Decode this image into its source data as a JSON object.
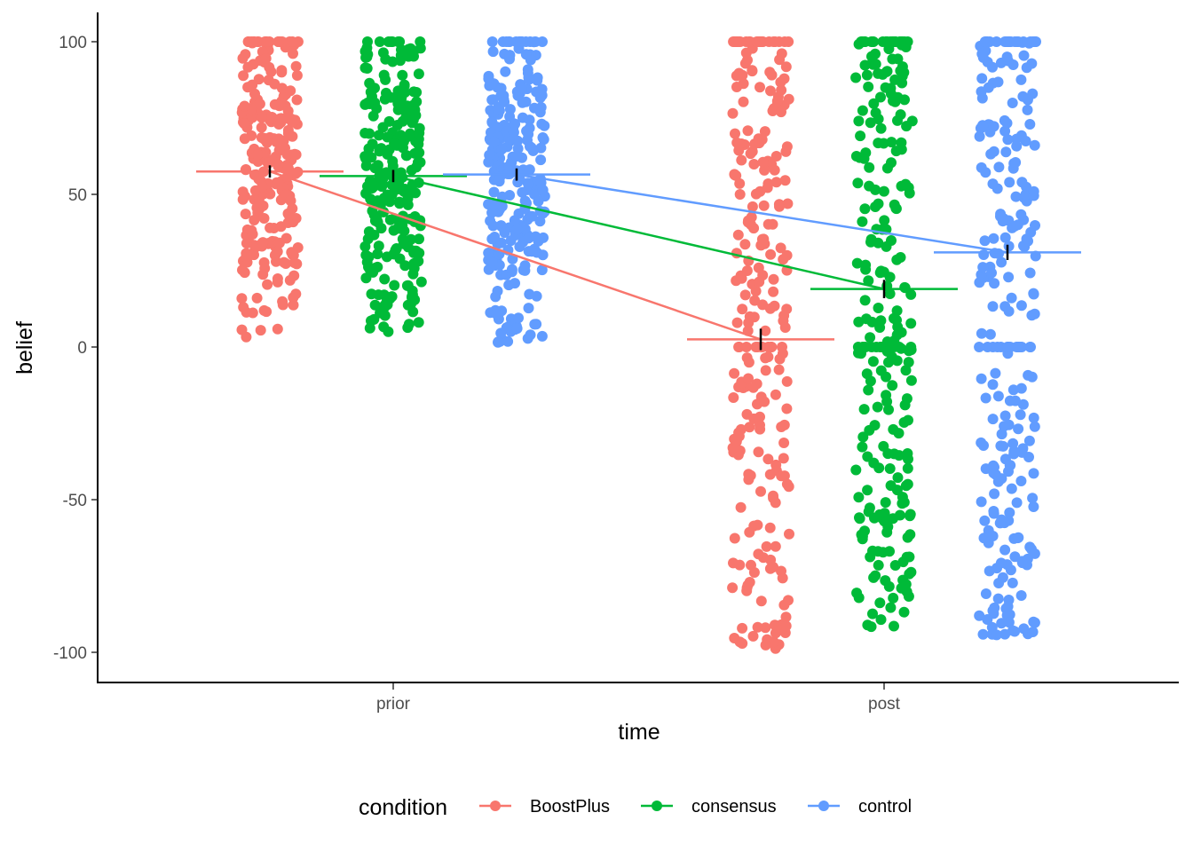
{
  "chart_data": {
    "type": "scatter",
    "title": "",
    "xlabel": "time",
    "ylabel": "belief",
    "categories": [
      "prior",
      "post"
    ],
    "ylim": [
      -110,
      110
    ],
    "yticks": [
      100,
      50,
      0,
      -50,
      -100
    ],
    "ytick_labels": [
      "100",
      "50",
      "0",
      "-50",
      "-100"
    ],
    "grid": false,
    "legend": {
      "title": "condition",
      "position": "bottom"
    },
    "series": [
      {
        "name": "BoostPlus",
        "color": "#F8766D",
        "means": [
          57.5,
          2.5
        ],
        "error": [
          2.0,
          3.5
        ],
        "jitter_ranges": {
          "prior": [
            3,
            100
          ],
          "post": [
            -100,
            100
          ]
        }
      },
      {
        "name": "consensus",
        "color": "#00BA38",
        "means": [
          56.0,
          19.0
        ],
        "error": [
          2.0,
          3.0
        ],
        "jitter_ranges": {
          "prior": [
            5,
            100
          ],
          "post": [
            -92,
            100
          ]
        }
      },
      {
        "name": "control",
        "color": "#619CFF",
        "means": [
          56.5,
          31.0
        ],
        "error": [
          2.0,
          2.5
        ],
        "jitter_ranges": {
          "prior": [
            1,
            100
          ],
          "post": [
            -95,
            100
          ]
        }
      }
    ]
  }
}
